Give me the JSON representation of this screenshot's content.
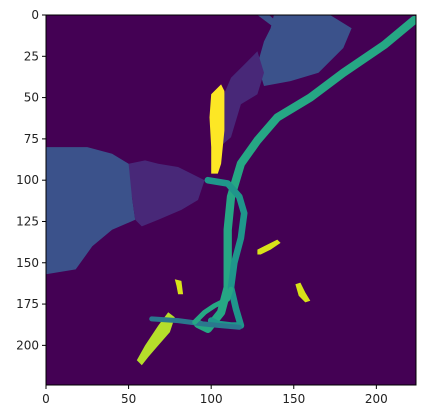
{
  "chart_data": {
    "type": "heatmap",
    "subtype": "segmentation-mask-image",
    "title": "",
    "xlabel": "",
    "ylabel": "",
    "xlim": [
      0,
      224
    ],
    "ylim": [
      224,
      0
    ],
    "x_ticks": [
      0,
      50,
      100,
      150,
      200
    ],
    "y_ticks": [
      0,
      25,
      50,
      75,
      100,
      125,
      150,
      175,
      200
    ],
    "grid": false,
    "legend": "none",
    "colormap": "viridis",
    "background_color": "#440154",
    "regions": [
      {
        "name": "upper-right-blob",
        "color": "#3b528b",
        "polygon": [
          [
            128,
            0
          ],
          [
            136,
            6
          ],
          [
            145,
            12
          ],
          [
            150,
            18
          ],
          [
            160,
            22
          ],
          [
            170,
            18
          ],
          [
            178,
            10
          ],
          [
            176,
            5
          ],
          [
            168,
            0
          ],
          [
            162,
            0
          ],
          [
            158,
            6
          ],
          [
            150,
            10
          ],
          [
            142,
            6
          ],
          [
            135,
            0
          ]
        ]
      },
      {
        "name": "upper-right-main-blob",
        "color": "#3b528b",
        "polygon": [
          [
            138,
            0
          ],
          [
            172,
            0
          ],
          [
            185,
            8
          ],
          [
            180,
            20
          ],
          [
            165,
            35
          ],
          [
            148,
            40
          ],
          [
            132,
            43
          ],
          [
            128,
            30
          ],
          [
            132,
            16
          ],
          [
            136,
            8
          ]
        ]
      },
      {
        "name": "upper-middle-lobe",
        "color": "#482878",
        "polygon": [
          [
            128,
            22
          ],
          [
            132,
            35
          ],
          [
            128,
            48
          ],
          [
            118,
            54
          ],
          [
            112,
            74
          ],
          [
            105,
            80
          ],
          [
            104,
            66
          ],
          [
            106,
            52
          ],
          [
            112,
            38
          ],
          [
            120,
            30
          ]
        ]
      },
      {
        "name": "left-large-blob",
        "color": "#3b528b",
        "polygon": [
          [
            0,
            80
          ],
          [
            25,
            80
          ],
          [
            40,
            84
          ],
          [
            50,
            90
          ],
          [
            55,
            96
          ],
          [
            52,
            110
          ],
          [
            54,
            124
          ],
          [
            40,
            130
          ],
          [
            28,
            140
          ],
          [
            18,
            154
          ],
          [
            0,
            157
          ]
        ]
      },
      {
        "name": "left-middle-lobe",
        "color": "#482878",
        "polygon": [
          [
            50,
            90
          ],
          [
            60,
            88
          ],
          [
            68,
            90
          ],
          [
            80,
            92
          ],
          [
            88,
            96
          ],
          [
            96,
            100
          ],
          [
            92,
            112
          ],
          [
            82,
            118
          ],
          [
            68,
            124
          ],
          [
            58,
            128
          ],
          [
            54,
            124
          ],
          [
            52,
            110
          ]
        ]
      },
      {
        "name": "vertical-yellow-strip",
        "color": "#fde725",
        "polygon": [
          [
            100,
            48
          ],
          [
            106,
            42
          ],
          [
            108,
            46
          ],
          [
            108,
            70
          ],
          [
            106,
            90
          ],
          [
            104,
            96
          ],
          [
            100,
            96
          ],
          [
            100,
            80
          ],
          [
            99,
            62
          ]
        ]
      },
      {
        "name": "small-yellow-dash-center",
        "color": "#d8e219",
        "polygon": [
          [
            128,
            142
          ],
          [
            132,
            140
          ],
          [
            140,
            136
          ],
          [
            142,
            138
          ],
          [
            136,
            142
          ],
          [
            130,
            145
          ],
          [
            128,
            145
          ]
        ]
      },
      {
        "name": "small-yellow-dot-left",
        "color": "#d8e219",
        "polygon": [
          [
            78,
            160
          ],
          [
            82,
            161
          ],
          [
            83,
            169
          ],
          [
            80,
            169
          ],
          [
            79,
            164
          ]
        ]
      },
      {
        "name": "small-yellow-dash-right",
        "color": "#d8e219",
        "polygon": [
          [
            151,
            163
          ],
          [
            154,
            162
          ],
          [
            157,
            168
          ],
          [
            160,
            173
          ],
          [
            157,
            174
          ],
          [
            153,
            170
          ]
        ]
      },
      {
        "name": "lower-yellow-stroke",
        "color": "#b5de2b",
        "polygon": [
          [
            55,
            209
          ],
          [
            60,
            200
          ],
          [
            68,
            188
          ],
          [
            74,
            180
          ],
          [
            78,
            183
          ],
          [
            75,
            192
          ],
          [
            68,
            200
          ],
          [
            62,
            207
          ],
          [
            58,
            212
          ]
        ]
      }
    ],
    "paths": [
      {
        "name": "long-diagonal-vessel",
        "color": "#26a784",
        "width": 5,
        "points": [
          [
            223,
            3
          ],
          [
            205,
            18
          ],
          [
            180,
            35
          ],
          [
            160,
            50
          ],
          [
            140,
            62
          ],
          [
            128,
            76
          ],
          [
            118,
            90
          ],
          [
            112,
            110
          ],
          [
            110,
            130
          ],
          [
            110,
            150
          ],
          [
            110,
            165
          ],
          [
            106,
            180
          ],
          [
            98,
            190
          ],
          [
            92,
            187
          ]
        ]
      },
      {
        "name": "crossing-vessel",
        "color": "#1f968b",
        "width": 4,
        "points": [
          [
            98,
            100
          ],
          [
            110,
            102
          ],
          [
            117,
            110
          ],
          [
            120,
            120
          ],
          [
            118,
            135
          ],
          [
            114,
            150
          ],
          [
            112,
            165
          ],
          [
            115,
            178
          ],
          [
            118,
            188
          ],
          [
            112,
            188
          ],
          [
            104,
            187
          ],
          [
            100,
            185
          ]
        ]
      },
      {
        "name": "lower-horizontal-vessel",
        "color": "#2a788e",
        "width": 3,
        "points": [
          [
            64,
            184
          ],
          [
            80,
            185
          ],
          [
            95,
            187
          ],
          [
            105,
            188
          ],
          [
            117,
            189
          ]
        ]
      },
      {
        "name": "lower-left-branch",
        "color": "#26a784",
        "width": 3,
        "points": [
          [
            90,
            186
          ],
          [
            96,
            180
          ],
          [
            102,
            176
          ],
          [
            110,
            172
          ],
          [
            112,
            166
          ]
        ]
      }
    ]
  }
}
